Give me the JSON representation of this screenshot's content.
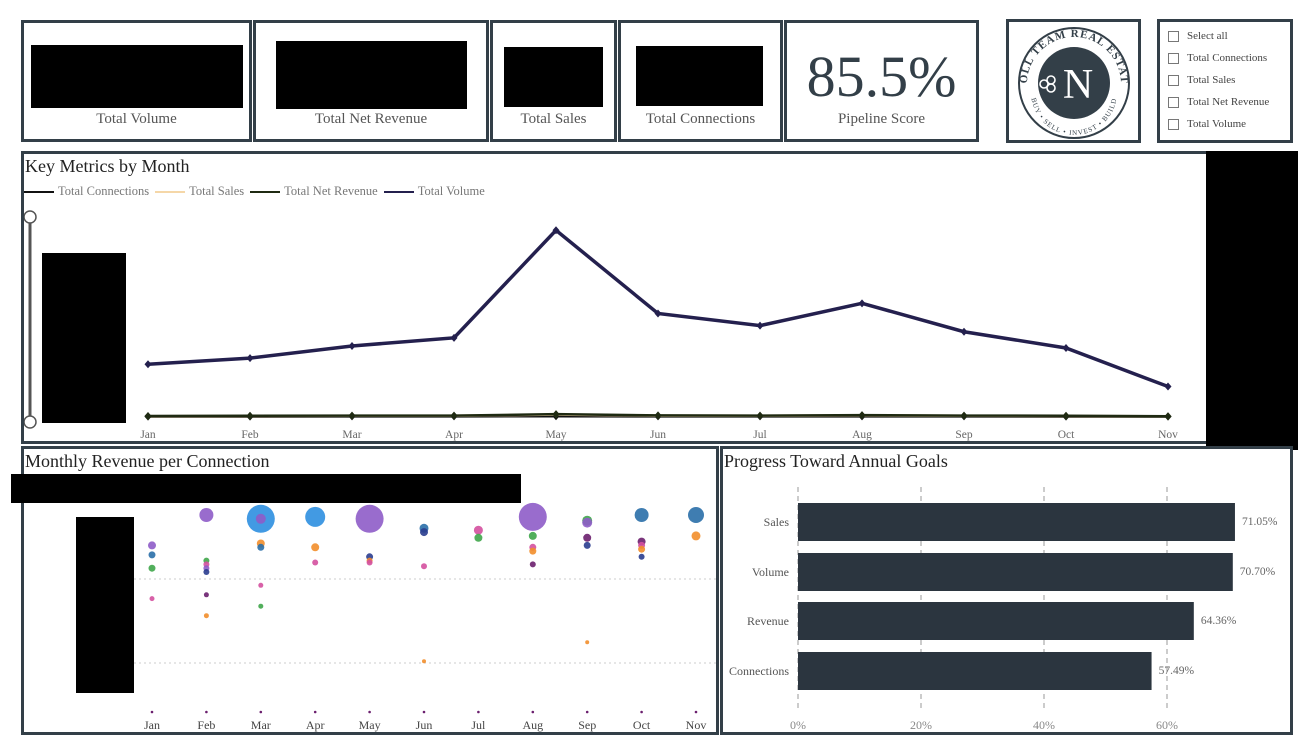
{
  "kpis": {
    "total_volume_label": "Total Volume",
    "total_net_revenue_label": "Total Net Revenue",
    "total_sales_label": "Total Sales",
    "total_connections_label": "Total Connections",
    "pipeline_score_value": "85.5%",
    "pipeline_score_label": "Pipeline Score"
  },
  "logo": {
    "text_top": "NOLL TEAM REAL ESTATE",
    "text_bottom": "BUY • SELL • INVEST • BUILD",
    "monogram": "N"
  },
  "slicer": {
    "items": [
      "Select all",
      "Total Connections",
      "Total Sales",
      "Total Net Revenue",
      "Total Volume"
    ]
  },
  "line_panel": {
    "title": "Key Metrics by Month",
    "legend": [
      {
        "label": "Total Connections",
        "color": "#111111"
      },
      {
        "label": "Total Sales",
        "color": "#f5d7a8"
      },
      {
        "label": "Total Net Revenue",
        "color": "#1f2a12"
      },
      {
        "label": "Total Volume",
        "color": "#24204e"
      }
    ]
  },
  "scatter_panel": {
    "title": "Monthly Revenue per Connection"
  },
  "bar_panel": {
    "title": "Progress Toward Annual Goals"
  },
  "chart_data": [
    {
      "type": "line",
      "title": "Key Metrics by Month",
      "categories": [
        "Jan",
        "Feb",
        "Mar",
        "Apr",
        "May",
        "Jun",
        "Jul",
        "Aug",
        "Sep",
        "Oct",
        "Nov"
      ],
      "ylim": [
        0,
        1
      ],
      "series": [
        {
          "name": "Total Volume",
          "color": "#24204e",
          "values": [
            0.26,
            0.29,
            0.35,
            0.39,
            0.92,
            0.51,
            0.45,
            0.56,
            0.42,
            0.34,
            0.15
          ]
        },
        {
          "name": "Total Net Revenue",
          "color": "#1f2a12",
          "values": [
            0.005,
            0.006,
            0.007,
            0.007,
            0.014,
            0.008,
            0.007,
            0.009,
            0.007,
            0.006,
            0.004
          ]
        },
        {
          "name": "Total Sales",
          "color": "#f5d7a8",
          "values": [
            0.004,
            0.005,
            0.006,
            0.006,
            0.012,
            0.007,
            0.006,
            0.008,
            0.006,
            0.005,
            0.003
          ]
        },
        {
          "name": "Total Connections",
          "color": "#111111",
          "values": [
            0.002,
            0.002,
            0.003,
            0.003,
            0.004,
            0.003,
            0.003,
            0.003,
            0.003,
            0.002,
            0.002
          ]
        }
      ]
    },
    {
      "type": "scatter",
      "title": "Monthly Revenue per Connection",
      "categories": [
        "Jan",
        "Feb",
        "Mar",
        "Apr",
        "May",
        "Jun",
        "Jul",
        "Aug",
        "Sep",
        "Oct",
        "Nov"
      ],
      "ylim": [
        0,
        1
      ],
      "points": [
        {
          "x": "Jan",
          "y": 0.84,
          "r": 4,
          "color": "#8e5cc8"
        },
        {
          "x": "Jan",
          "y": 0.79,
          "r": 3.5,
          "color": "#2a6fa8"
        },
        {
          "x": "Jan",
          "y": 0.72,
          "r": 3.5,
          "color": "#3fa64a"
        },
        {
          "x": "Jan",
          "y": 0.56,
          "r": 2.5,
          "color": "#d4509e"
        },
        {
          "x": "Feb",
          "y": 0.76,
          "r": 3,
          "color": "#3fa64a"
        },
        {
          "x": "Feb",
          "y": 0.74,
          "r": 3,
          "color": "#d4509e"
        },
        {
          "x": "Feb",
          "y": 0.72,
          "r": 3,
          "color": "#8e5cc8"
        },
        {
          "x": "Feb",
          "y": 0.7,
          "r": 3,
          "color": "#2a3d8f"
        },
        {
          "x": "Feb",
          "y": 0.58,
          "r": 2.5,
          "color": "#6b1f6e"
        },
        {
          "x": "Feb",
          "y": 0.47,
          "r": 2.5,
          "color": "#f28e2b"
        },
        {
          "x": "Feb",
          "y": 1.0,
          "r": 7,
          "color": "#8e5cc8"
        },
        {
          "x": "Mar",
          "y": 0.85,
          "r": 4,
          "color": "#f28e2b"
        },
        {
          "x": "Mar",
          "y": 0.83,
          "r": 3.5,
          "color": "#2a6fa8"
        },
        {
          "x": "Mar",
          "y": 0.63,
          "r": 2.5,
          "color": "#d4509e"
        },
        {
          "x": "Mar",
          "y": 0.52,
          "r": 2.5,
          "color": "#3fa64a"
        },
        {
          "x": "Mar",
          "y": 0.98,
          "r": 14,
          "color": "#2e8fe0"
        },
        {
          "x": "Mar",
          "y": 0.98,
          "r": 5,
          "color": "#8e5cc8"
        },
        {
          "x": "Apr",
          "y": 0.83,
          "r": 4,
          "color": "#f28e2b"
        },
        {
          "x": "Apr",
          "y": 0.75,
          "r": 3,
          "color": "#d4509e"
        },
        {
          "x": "Apr",
          "y": 0.99,
          "r": 10,
          "color": "#2e8fe0"
        },
        {
          "x": "May",
          "y": 0.78,
          "r": 3.5,
          "color": "#2a3d8f"
        },
        {
          "x": "May",
          "y": 0.76,
          "r": 3,
          "color": "#f28e2b"
        },
        {
          "x": "May",
          "y": 0.75,
          "r": 3,
          "color": "#d4509e"
        },
        {
          "x": "May",
          "y": 0.98,
          "r": 14,
          "color": "#8e5cc8"
        },
        {
          "x": "Jun",
          "y": 0.93,
          "r": 4.5,
          "color": "#2a6fa8"
        },
        {
          "x": "Jun",
          "y": 0.91,
          "r": 4,
          "color": "#2a3d8f"
        },
        {
          "x": "Jun",
          "y": 0.73,
          "r": 3,
          "color": "#d4509e"
        },
        {
          "x": "Jun",
          "y": 0.23,
          "r": 2,
          "color": "#f28e2b"
        },
        {
          "x": "Jul",
          "y": 0.92,
          "r": 4.5,
          "color": "#d4509e"
        },
        {
          "x": "Jul",
          "y": 0.88,
          "r": 4,
          "color": "#3fa64a"
        },
        {
          "x": "Aug",
          "y": 0.89,
          "r": 4,
          "color": "#3fa64a"
        },
        {
          "x": "Aug",
          "y": 0.83,
          "r": 3.5,
          "color": "#d4509e"
        },
        {
          "x": "Aug",
          "y": 0.81,
          "r": 3.5,
          "color": "#f28e2b"
        },
        {
          "x": "Aug",
          "y": 0.74,
          "r": 3,
          "color": "#6b1f6e"
        },
        {
          "x": "Aug",
          "y": 0.99,
          "r": 14,
          "color": "#8e5cc8"
        },
        {
          "x": "Sep",
          "y": 0.97,
          "r": 5,
          "color": "#3fa64a"
        },
        {
          "x": "Sep",
          "y": 0.96,
          "r": 5,
          "color": "#8e5cc8"
        },
        {
          "x": "Sep",
          "y": 0.88,
          "r": 4,
          "color": "#6b1f6e"
        },
        {
          "x": "Sep",
          "y": 0.84,
          "r": 3.5,
          "color": "#2a3d8f"
        },
        {
          "x": "Sep",
          "y": 0.33,
          "r": 2,
          "color": "#f28e2b"
        },
        {
          "x": "Oct",
          "y": 1.0,
          "r": 7,
          "color": "#2a6fa8"
        },
        {
          "x": "Oct",
          "y": 0.86,
          "r": 4,
          "color": "#6b1f6e"
        },
        {
          "x": "Oct",
          "y": 0.84,
          "r": 3.5,
          "color": "#d4509e"
        },
        {
          "x": "Oct",
          "y": 0.82,
          "r": 3.5,
          "color": "#f28e2b"
        },
        {
          "x": "Oct",
          "y": 0.78,
          "r": 3,
          "color": "#2a3d8f"
        },
        {
          "x": "Nov",
          "y": 1.0,
          "r": 8,
          "color": "#2a6fa8"
        },
        {
          "x": "Nov",
          "y": 0.89,
          "r": 4.5,
          "color": "#f28e2b"
        }
      ]
    },
    {
      "type": "bar",
      "orientation": "horizontal",
      "title": "Progress Toward Annual Goals",
      "categories": [
        "Sales",
        "Volume",
        "Revenue",
        "Connections"
      ],
      "values": [
        71.05,
        70.7,
        64.36,
        57.49
      ],
      "value_labels": [
        "71.05%",
        "70.70%",
        "64.36%",
        "57.49%"
      ],
      "xlim": [
        0,
        60
      ],
      "xticks": [
        "0%",
        "20%",
        "40%",
        "60%"
      ],
      "bar_color": "#2b353f"
    }
  ]
}
